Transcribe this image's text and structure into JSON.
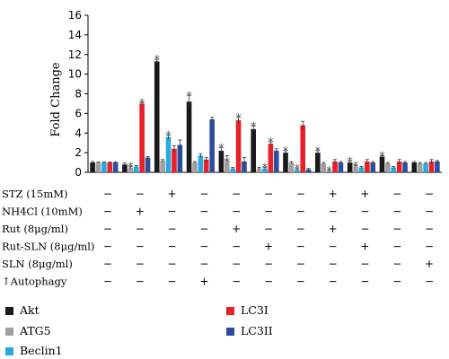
{
  "chart_data": {
    "type": "bar",
    "ylabel": "Fold Change",
    "ylim": [
      0,
      16
    ],
    "yticks": [
      0,
      2,
      4,
      6,
      8,
      10,
      12,
      14,
      16
    ],
    "groups": 11,
    "series": [
      {
        "name": "Akt",
        "color": "#1a1a1a",
        "values": [
          1.0,
          0.8,
          11.3,
          7.2,
          2.2,
          4.4,
          2.0,
          2.0,
          1.0,
          1.6,
          1.0
        ],
        "errors": [
          0.1,
          0.15,
          0.2,
          0.6,
          0.3,
          0.3,
          0.2,
          0.2,
          0.15,
          0.1,
          0.1
        ],
        "stars": [
          false,
          false,
          true,
          true,
          true,
          true,
          true,
          true,
          true,
          true,
          false
        ]
      },
      {
        "name": "ATG5",
        "color": "#a0a0a0",
        "values": [
          1.0,
          0.5,
          1.2,
          1.0,
          1.4,
          0.4,
          1.0,
          0.9,
          0.6,
          0.9,
          0.9
        ],
        "errors": [
          0.05,
          0.1,
          0.1,
          0.1,
          0.3,
          0.1,
          0.1,
          0.1,
          0.1,
          0.1,
          0.1
        ],
        "stars": [
          false,
          true,
          false,
          false,
          false,
          false,
          false,
          false,
          true,
          false,
          false
        ]
      },
      {
        "name": "Beclin1",
        "color": "#29a9e0",
        "values": [
          1.0,
          0.6,
          3.6,
          1.7,
          0.4,
          0.4,
          0.3,
          0.1,
          0.5,
          0.5,
          0.9
        ],
        "errors": [
          0.05,
          0.1,
          0.2,
          0.2,
          0.1,
          0.1,
          0.1,
          0.1,
          0.1,
          0.1,
          0.1
        ],
        "stars": [
          false,
          false,
          true,
          false,
          false,
          true,
          true,
          true,
          false,
          false,
          false
        ]
      },
      {
        "name": "LC3I",
        "color": "#e8202a",
        "values": [
          1.0,
          7.0,
          2.4,
          1.3,
          5.3,
          2.9,
          4.8,
          1.1,
          1.1,
          1.1,
          1.1
        ],
        "errors": [
          0.05,
          0.1,
          0.3,
          0.2,
          0.3,
          0.2,
          0.4,
          0.2,
          0.2,
          0.2,
          0.2
        ],
        "stars": [
          false,
          true,
          false,
          false,
          true,
          true,
          false,
          false,
          false,
          false,
          false
        ]
      },
      {
        "name": "LC3II",
        "color": "#2b4f9e",
        "values": [
          1.0,
          1.5,
          2.8,
          5.4,
          1.1,
          2.2,
          0.3,
          1.0,
          1.0,
          1.0,
          1.1
        ],
        "errors": [
          0.05,
          0.1,
          0.5,
          0.2,
          0.4,
          0.2,
          0.1,
          0.1,
          0.1,
          0.1,
          0.1
        ],
        "stars": [
          false,
          false,
          false,
          false,
          false,
          false,
          false,
          false,
          false,
          false,
          false
        ]
      }
    ],
    "star_symbol": "*",
    "treatment_rows": [
      {
        "label": "STZ (15mM)",
        "signs": [
          "−",
          "−",
          "+",
          "−",
          "−",
          "−",
          "−",
          "+",
          "+",
          "−",
          "−"
        ]
      },
      {
        "label": "NH4Cl (10mM)",
        "signs": [
          "−",
          "+",
          "−",
          "−",
          "−",
          "−",
          "−",
          "−",
          "−",
          "−",
          "−"
        ]
      },
      {
        "label": "Rut (8μg/ml)",
        "signs": [
          "−",
          "−",
          "−",
          "−",
          "+",
          "−",
          "−",
          "+",
          "−",
          "−",
          "−"
        ]
      },
      {
        "label": "Rut-SLN (8μg/ml)",
        "signs": [
          "−",
          "−",
          "−",
          "−",
          "−",
          "+",
          "−",
          "−",
          "+",
          "−",
          "−"
        ]
      },
      {
        "label": "SLN (8μg/ml)",
        "signs": [
          "−",
          "−",
          "−",
          "−",
          "−",
          "−",
          "−",
          "−",
          "−",
          "−",
          "+"
        ]
      },
      {
        "label": "↑Autophagy",
        "signs": [
          "−",
          "−",
          "−",
          "+",
          "−",
          "−",
          "−",
          "−",
          "−",
          "−",
          "−"
        ]
      }
    ],
    "legend": [
      {
        "name": "Akt",
        "color": "#1a1a1a"
      },
      {
        "name": "ATG5",
        "color": "#a0a0a0"
      },
      {
        "name": "Beclin1",
        "color": "#29a9e0"
      },
      {
        "name": "LC3I",
        "color": "#e8202a"
      },
      {
        "name": "LC3II",
        "color": "#2b4f9e"
      }
    ]
  }
}
